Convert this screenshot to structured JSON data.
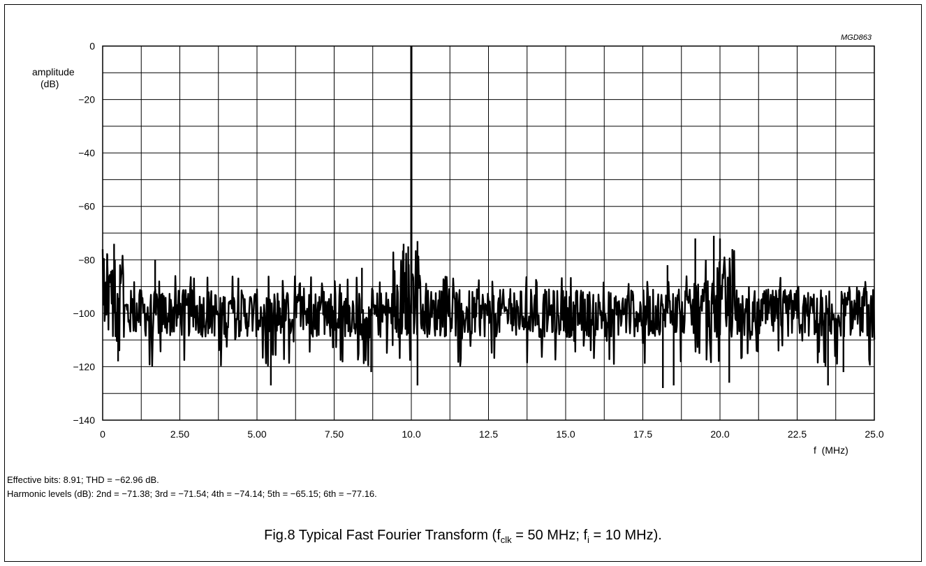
{
  "figure_code": "MGD863",
  "notes": {
    "line1": "Effective bits: 8.91; THD = −62.96 dB.",
    "line2": "Harmonic levels (dB): 2nd = −71.38; 3rd = −71.54; 4th = −74.14; 5th = −65.15; 6th = −77.16."
  },
  "caption": {
    "prefix": "Fig.8  Typical Fast Fourier Transform (f",
    "sub1": "clk",
    "mid": " = 50 MHz; f",
    "sub2": "i",
    "suffix": " = 10 MHz)."
  },
  "chart_data": {
    "type": "line",
    "title": "",
    "ylabel_line1": "amplitude",
    "ylabel_line2": "(dB)",
    "xlabel": "f  (MHz)",
    "xlim": [
      0,
      25
    ],
    "ylim": [
      -140,
      0
    ],
    "x_tick_values": [
      0,
      2.5,
      5,
      7.5,
      10,
      12.5,
      15,
      17.5,
      20,
      22.5,
      25
    ],
    "x_tick_labels": [
      "0",
      "2.50",
      "5.00",
      "7.50",
      "10.0",
      "12.5",
      "15.0",
      "17.5",
      "20.0",
      "22.5",
      "25.0"
    ],
    "y_tick_values": [
      0,
      -20,
      -40,
      -60,
      -80,
      -100,
      -120,
      -140
    ],
    "y_tick_labels": [
      "0",
      "−20",
      "−40",
      "−60",
      "−80",
      "−100",
      "−120",
      "−140"
    ],
    "grid": true,
    "grid_x_step": 1.25,
    "grid_y_step": 10,
    "noise_floor_db": -100,
    "series": [
      {
        "color": "#000000",
        "peaks": [
          {
            "x": 10.0,
            "y": 0
          },
          {
            "x": 0.37,
            "y": -74
          },
          {
            "x": 0.15,
            "y": -78
          },
          {
            "x": 1.7,
            "y": -80
          },
          {
            "x": 9.75,
            "y": -74
          },
          {
            "x": 9.9,
            "y": -75
          },
          {
            "x": 10.2,
            "y": -73
          },
          {
            "x": 19.2,
            "y": -72
          },
          {
            "x": 19.8,
            "y": -71
          },
          {
            "x": 20.0,
            "y": -72
          },
          {
            "x": 20.4,
            "y": -76
          },
          {
            "x": 18.3,
            "y": -82
          },
          {
            "x": 8.4,
            "y": -83
          },
          {
            "x": 0.5,
            "y": -118
          },
          {
            "x": 5.45,
            "y": -127
          },
          {
            "x": 8.7,
            "y": -122
          },
          {
            "x": 10.2,
            "y": -127
          },
          {
            "x": 18.15,
            "y": -128
          },
          {
            "x": 18.5,
            "y": -127
          },
          {
            "x": 20.3,
            "y": -126
          },
          {
            "x": 23.5,
            "y": -127
          },
          {
            "x": 24.0,
            "y": -122
          }
        ]
      }
    ]
  }
}
